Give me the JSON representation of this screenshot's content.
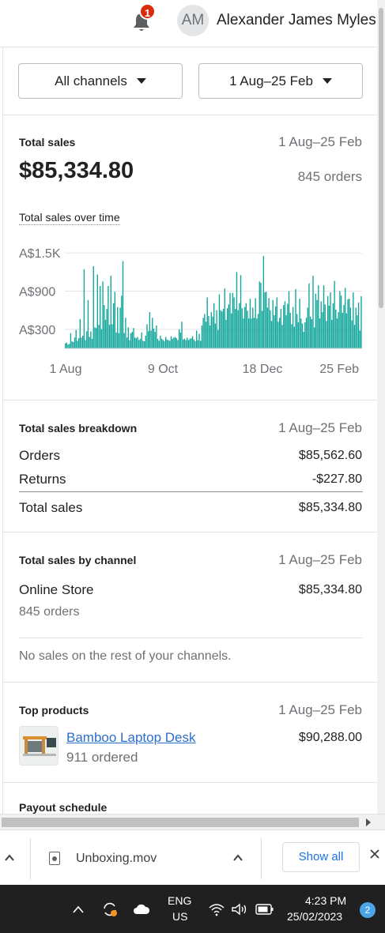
{
  "header": {
    "notification_count": "1",
    "avatar_initials": "AM",
    "user_name": "Alexander James Myles"
  },
  "filters": {
    "channel": "All channels",
    "date_range": "1 Aug–25 Feb"
  },
  "total_sales": {
    "title": "Total sales",
    "date": "1 Aug–25 Feb",
    "value": "$85,334.80",
    "orders": "845 orders",
    "chart_title": "Total sales over time"
  },
  "chart_data": {
    "type": "bar",
    "ytick_labels": [
      "A$1.5K",
      "A$900",
      "A$300"
    ],
    "ytick_values": [
      1500,
      900,
      300
    ],
    "xtick_labels": [
      "1 Aug",
      "9 Oct",
      "18 Dec",
      "25 Feb"
    ],
    "ylim": [
      0,
      1650
    ],
    "grid": true,
    "color": "#0ea59a",
    "series": [
      {
        "values": [
          80,
          90,
          60,
          70,
          240,
          110,
          100,
          170,
          290,
          120,
          160,
          460,
          170,
          200,
          1240,
          130,
          270,
          760,
          180,
          270,
          150,
          1290,
          330,
          320,
          1160,
          370,
          980,
          300,
          1050,
          680,
          450,
          620,
          980,
          370,
          1140,
          380,
          710,
          890,
          250,
          650,
          240,
          640,
          830,
          1370,
          240,
          480,
          170,
          330,
          130,
          240,
          260,
          320,
          170,
          160,
          180,
          130,
          150,
          250,
          120,
          110,
          200,
          380,
          270,
          570,
          280,
          480,
          310,
          260,
          360,
          150,
          120,
          200,
          150,
          130,
          110,
          180,
          140,
          130,
          120,
          190,
          150,
          170,
          180,
          160,
          130,
          300,
          250,
          420,
          140,
          150,
          130,
          170,
          130,
          150,
          160,
          190,
          140,
          110,
          280,
          130,
          230,
          120,
          360,
          480,
          540,
          420,
          800,
          510,
          360,
          570,
          500,
          710,
          390,
          600,
          290,
          850,
          600,
          580,
          620,
          940,
          450,
          630,
          690,
          870,
          550,
          870,
          800,
          620,
          1200,
          600,
          710,
          1150,
          630,
          470,
          650,
          710,
          590,
          470,
          780,
          470,
          640,
          480,
          790,
          470,
          540,
          1050,
          1030,
          590,
          1450,
          880,
          890,
          640,
          790,
          600,
          430,
          760,
          520,
          660,
          800,
          420,
          480,
          620,
          370,
          680,
          740,
          520,
          700,
          900,
          560,
          380,
          650,
          340,
          930,
          540,
          410,
          780,
          470,
          390,
          260,
          410,
          480,
          640,
          1020,
          500,
          460,
          1140,
          330,
          860,
          760,
          990,
          470,
          740,
          570,
          990,
          690,
          430,
          820,
          670,
          880,
          450,
          710,
          1060,
          610,
          470,
          570,
          900,
          830,
          560,
          680,
          950,
          550,
          770,
          780,
          640,
          440,
          880,
          370,
          640,
          520,
          720,
          280,
          820
        ]
      }
    ]
  },
  "breakdown": {
    "title": "Total sales breakdown",
    "date": "1 Aug–25 Feb",
    "orders_label": "Orders",
    "orders_value": "$85,562.60",
    "returns_label": "Returns",
    "returns_value": "-$227.80",
    "total_label": "Total sales",
    "total_value": "$85,334.80"
  },
  "by_channel": {
    "title": "Total sales by channel",
    "date": "1 Aug–25 Feb",
    "channel_name": "Online Store",
    "channel_value": "$85,334.80",
    "channel_orders": "845 orders",
    "no_sales_note": "No sales on the rest of your channels."
  },
  "top_products": {
    "title": "Top products",
    "date": "1 Aug–25 Feb",
    "product_name": "Bamboo Laptop Desk",
    "product_value": "$90,288.00",
    "product_ordered": "911 ordered"
  },
  "payout": {
    "title": "Payout schedule"
  },
  "download_bar": {
    "file_name": "Unboxing.mov",
    "show_all": "Show all"
  },
  "taskbar": {
    "lang_top": "ENG",
    "lang_bottom": "US",
    "time": "4:23 PM",
    "date": "25/02/2023",
    "notification_count": "2"
  }
}
